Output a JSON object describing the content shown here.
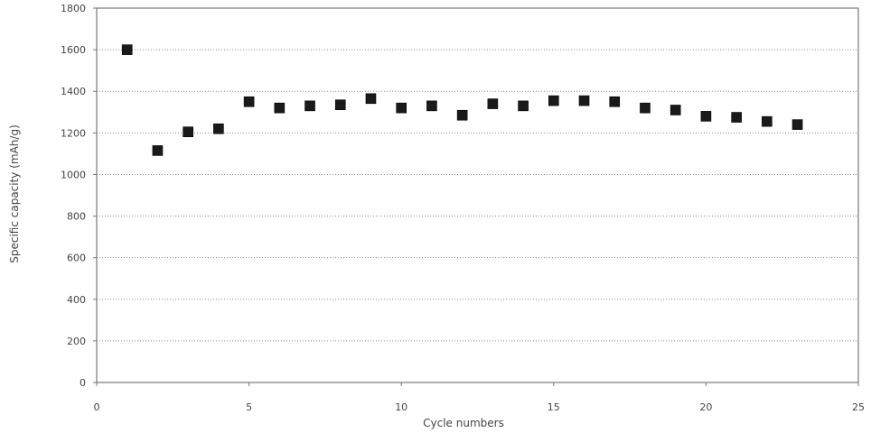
{
  "chart_data": {
    "type": "scatter",
    "title": "",
    "xlabel": "Cycle numbers",
    "ylabel": "Specific capacity (mAh/g)",
    "xlim": [
      0,
      25
    ],
    "ylim": [
      0,
      1800
    ],
    "xticks": [
      0,
      5,
      10,
      15,
      20,
      25
    ],
    "yticks": [
      0,
      200,
      400,
      600,
      800,
      1000,
      1200,
      1400,
      1600,
      1800
    ],
    "xtick_labels": [
      "0",
      "5",
      "10",
      "15",
      "20",
      "25"
    ],
    "ytick_labels": [
      "0",
      "200",
      "400",
      "600",
      "800",
      "1000",
      "1200",
      "1400",
      "1600",
      "1800"
    ],
    "grid": "horizontal-dotted",
    "marker": "square",
    "marker_color": "#1a1a1a",
    "series": [
      {
        "x": [
          1,
          2,
          3,
          4,
          5,
          6,
          7,
          8,
          9,
          10,
          11,
          12,
          13,
          14,
          15,
          16,
          17,
          18,
          19,
          20,
          21,
          22,
          23
        ],
        "y": [
          1600,
          1115,
          1205,
          1220,
          1350,
          1320,
          1330,
          1335,
          1365,
          1320,
          1330,
          1285,
          1340,
          1330,
          1355,
          1355,
          1350,
          1320,
          1310,
          1280,
          1275,
          1255,
          1240
        ]
      }
    ]
  }
}
